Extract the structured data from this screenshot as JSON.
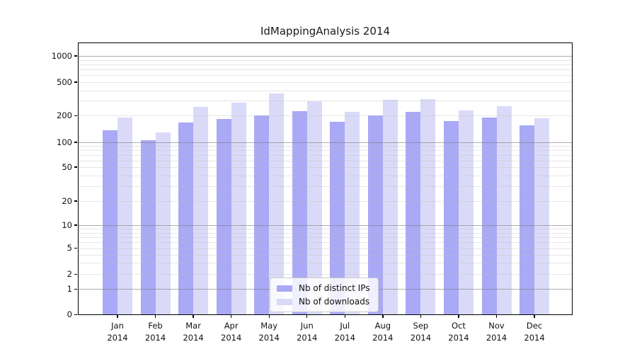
{
  "title": "IdMappingAnalysis 2014",
  "colors": {
    "distinct_ips": "#a9a9f6",
    "downloads": "#dadaf8",
    "grid_major": "#aeaeae",
    "grid_minor": "#e5e5e5",
    "axis": "#000000",
    "text": "#111111"
  },
  "legend": {
    "items": [
      {
        "label": "Nb of distinct IPs",
        "series": "distinct_ips"
      },
      {
        "label": "Nb of downloads",
        "series": "downloads"
      }
    ],
    "position": "lower center"
  },
  "y_axis": {
    "tick_labels": [
      "1000",
      "500",
      "200",
      "100",
      "50",
      "20",
      "10",
      "5",
      "2",
      "1",
      "0"
    ],
    "tick_values": [
      1000,
      500,
      200,
      100,
      50,
      20,
      10,
      5,
      2,
      1,
      0
    ],
    "scale": "log-like (log above 1, compressed linear segment 0-1)"
  },
  "x_axis": {
    "months": [
      "Jan",
      "Feb",
      "Mar",
      "Apr",
      "May",
      "Jun",
      "Jul",
      "Aug",
      "Sep",
      "Oct",
      "Nov",
      "Dec"
    ],
    "year": "2014"
  },
  "chart_data": {
    "type": "bar",
    "title": "IdMappingAnalysis 2014",
    "categories": [
      "Jan 2014",
      "Feb 2014",
      "Mar 2014",
      "Apr 2014",
      "May 2014",
      "Jun 2014",
      "Jul 2014",
      "Aug 2014",
      "Sep 2014",
      "Oct 2014",
      "Nov 2014",
      "Dec 2014"
    ],
    "series": [
      {
        "name": "Nb of distinct IPs",
        "values": [
          136,
          106,
          168,
          183,
          202,
          227,
          170,
          200,
          222,
          174,
          189,
          155
        ]
      },
      {
        "name": "Nb of downloads",
        "values": [
          190,
          129,
          252,
          287,
          369,
          296,
          223,
          308,
          316,
          232,
          260,
          188
        ]
      }
    ],
    "xlabel": "",
    "ylabel": "",
    "yscale": "log",
    "y_ticks": [
      0,
      1,
      2,
      5,
      10,
      20,
      50,
      100,
      200,
      500,
      1000
    ],
    "ylim": [
      0,
      1400
    ],
    "grid": "major and minor horizontal gridlines",
    "legend_position": "lower center"
  }
}
